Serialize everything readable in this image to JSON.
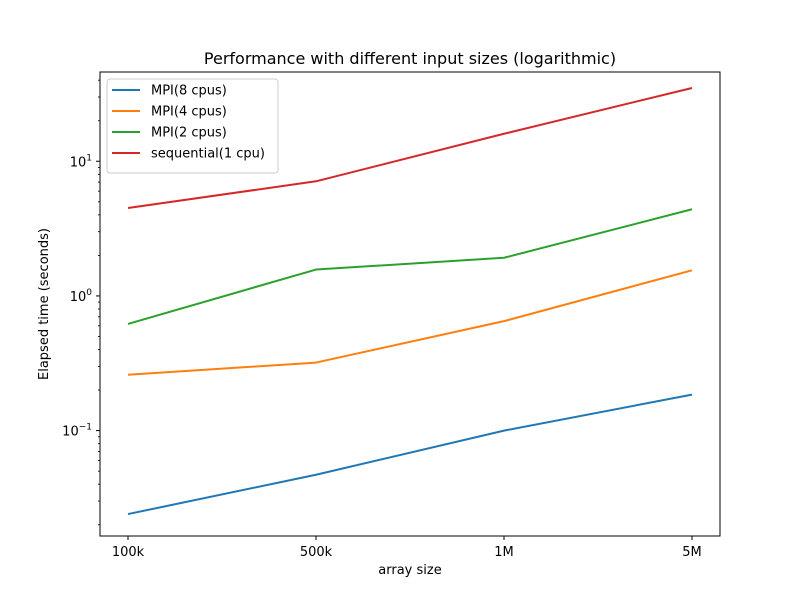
{
  "chart_data": {
    "type": "line",
    "title": "Performance with different input sizes (logarithmic)",
    "xlabel": "array size",
    "ylabel": "Elapsed time (seconds)",
    "yscale": "log",
    "ylim": [
      0.0165,
      46
    ],
    "grid": false,
    "legend_position": "top-left",
    "categories": [
      "100k",
      "500k",
      "1M",
      "5M"
    ],
    "y_ticks": [
      {
        "value": 0.1,
        "base": "10",
        "exp": "−1"
      },
      {
        "value": 1,
        "base": "10",
        "exp": "0"
      },
      {
        "value": 10,
        "base": "10",
        "exp": "1"
      }
    ],
    "series": [
      {
        "name": "MPI(8 cpus)",
        "color": "#1f77b4",
        "values": [
          0.024,
          0.047,
          0.1,
          0.185
        ]
      },
      {
        "name": "MPI(4 cpus)",
        "color": "#ff7f0e",
        "values": [
          0.26,
          0.32,
          0.65,
          1.55
        ]
      },
      {
        "name": "MPI(2 cpus)",
        "color": "#2ca02c",
        "values": [
          0.62,
          1.57,
          1.92,
          4.4
        ]
      },
      {
        "name": "sequential(1 cpu)",
        "color": "#d62728",
        "values": [
          4.5,
          7.1,
          16.0,
          35.0
        ]
      }
    ]
  }
}
